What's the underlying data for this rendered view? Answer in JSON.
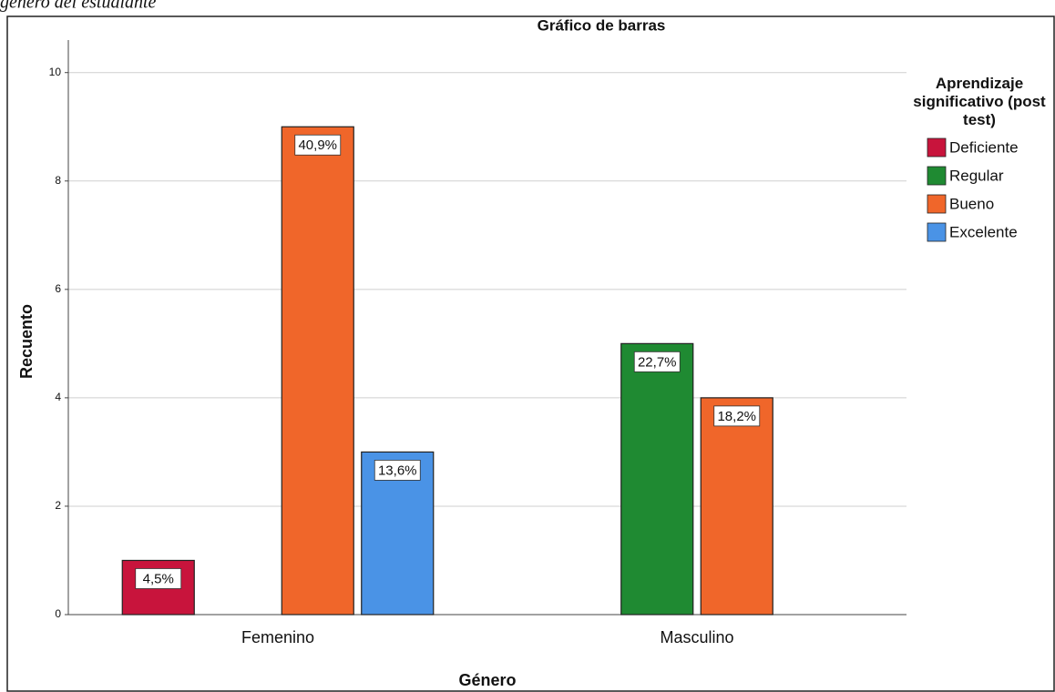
{
  "caption": "género del estudiante",
  "chart_data": {
    "type": "bar",
    "title": "Gráfico de barras",
    "x_label": "Género",
    "y_label": "Recuento",
    "legend_title": "Aprendizaje significativo (post test)",
    "categories": [
      "Femenino",
      "Masculino"
    ],
    "series": [
      {
        "name": "Deficiente",
        "color": "#c8143c",
        "values": [
          1,
          null
        ],
        "value_labels": [
          "4,5%",
          null
        ]
      },
      {
        "name": "Regular",
        "color": "#1f8a32",
        "values": [
          null,
          5
        ],
        "value_labels": [
          null,
          "22,7%"
        ]
      },
      {
        "name": "Bueno",
        "color": "#f0662a",
        "values": [
          9,
          4
        ],
        "value_labels": [
          "40,9%",
          "18,2%"
        ]
      },
      {
        "name": "Excelente",
        "color": "#4a93e6",
        "values": [
          3,
          null
        ],
        "value_labels": [
          "13,6%",
          null
        ]
      }
    ],
    "ylim": [
      0,
      10.6
    ],
    "yticks": [
      0,
      2,
      4,
      6,
      8,
      10
    ],
    "grid": true,
    "legend": "right"
  }
}
